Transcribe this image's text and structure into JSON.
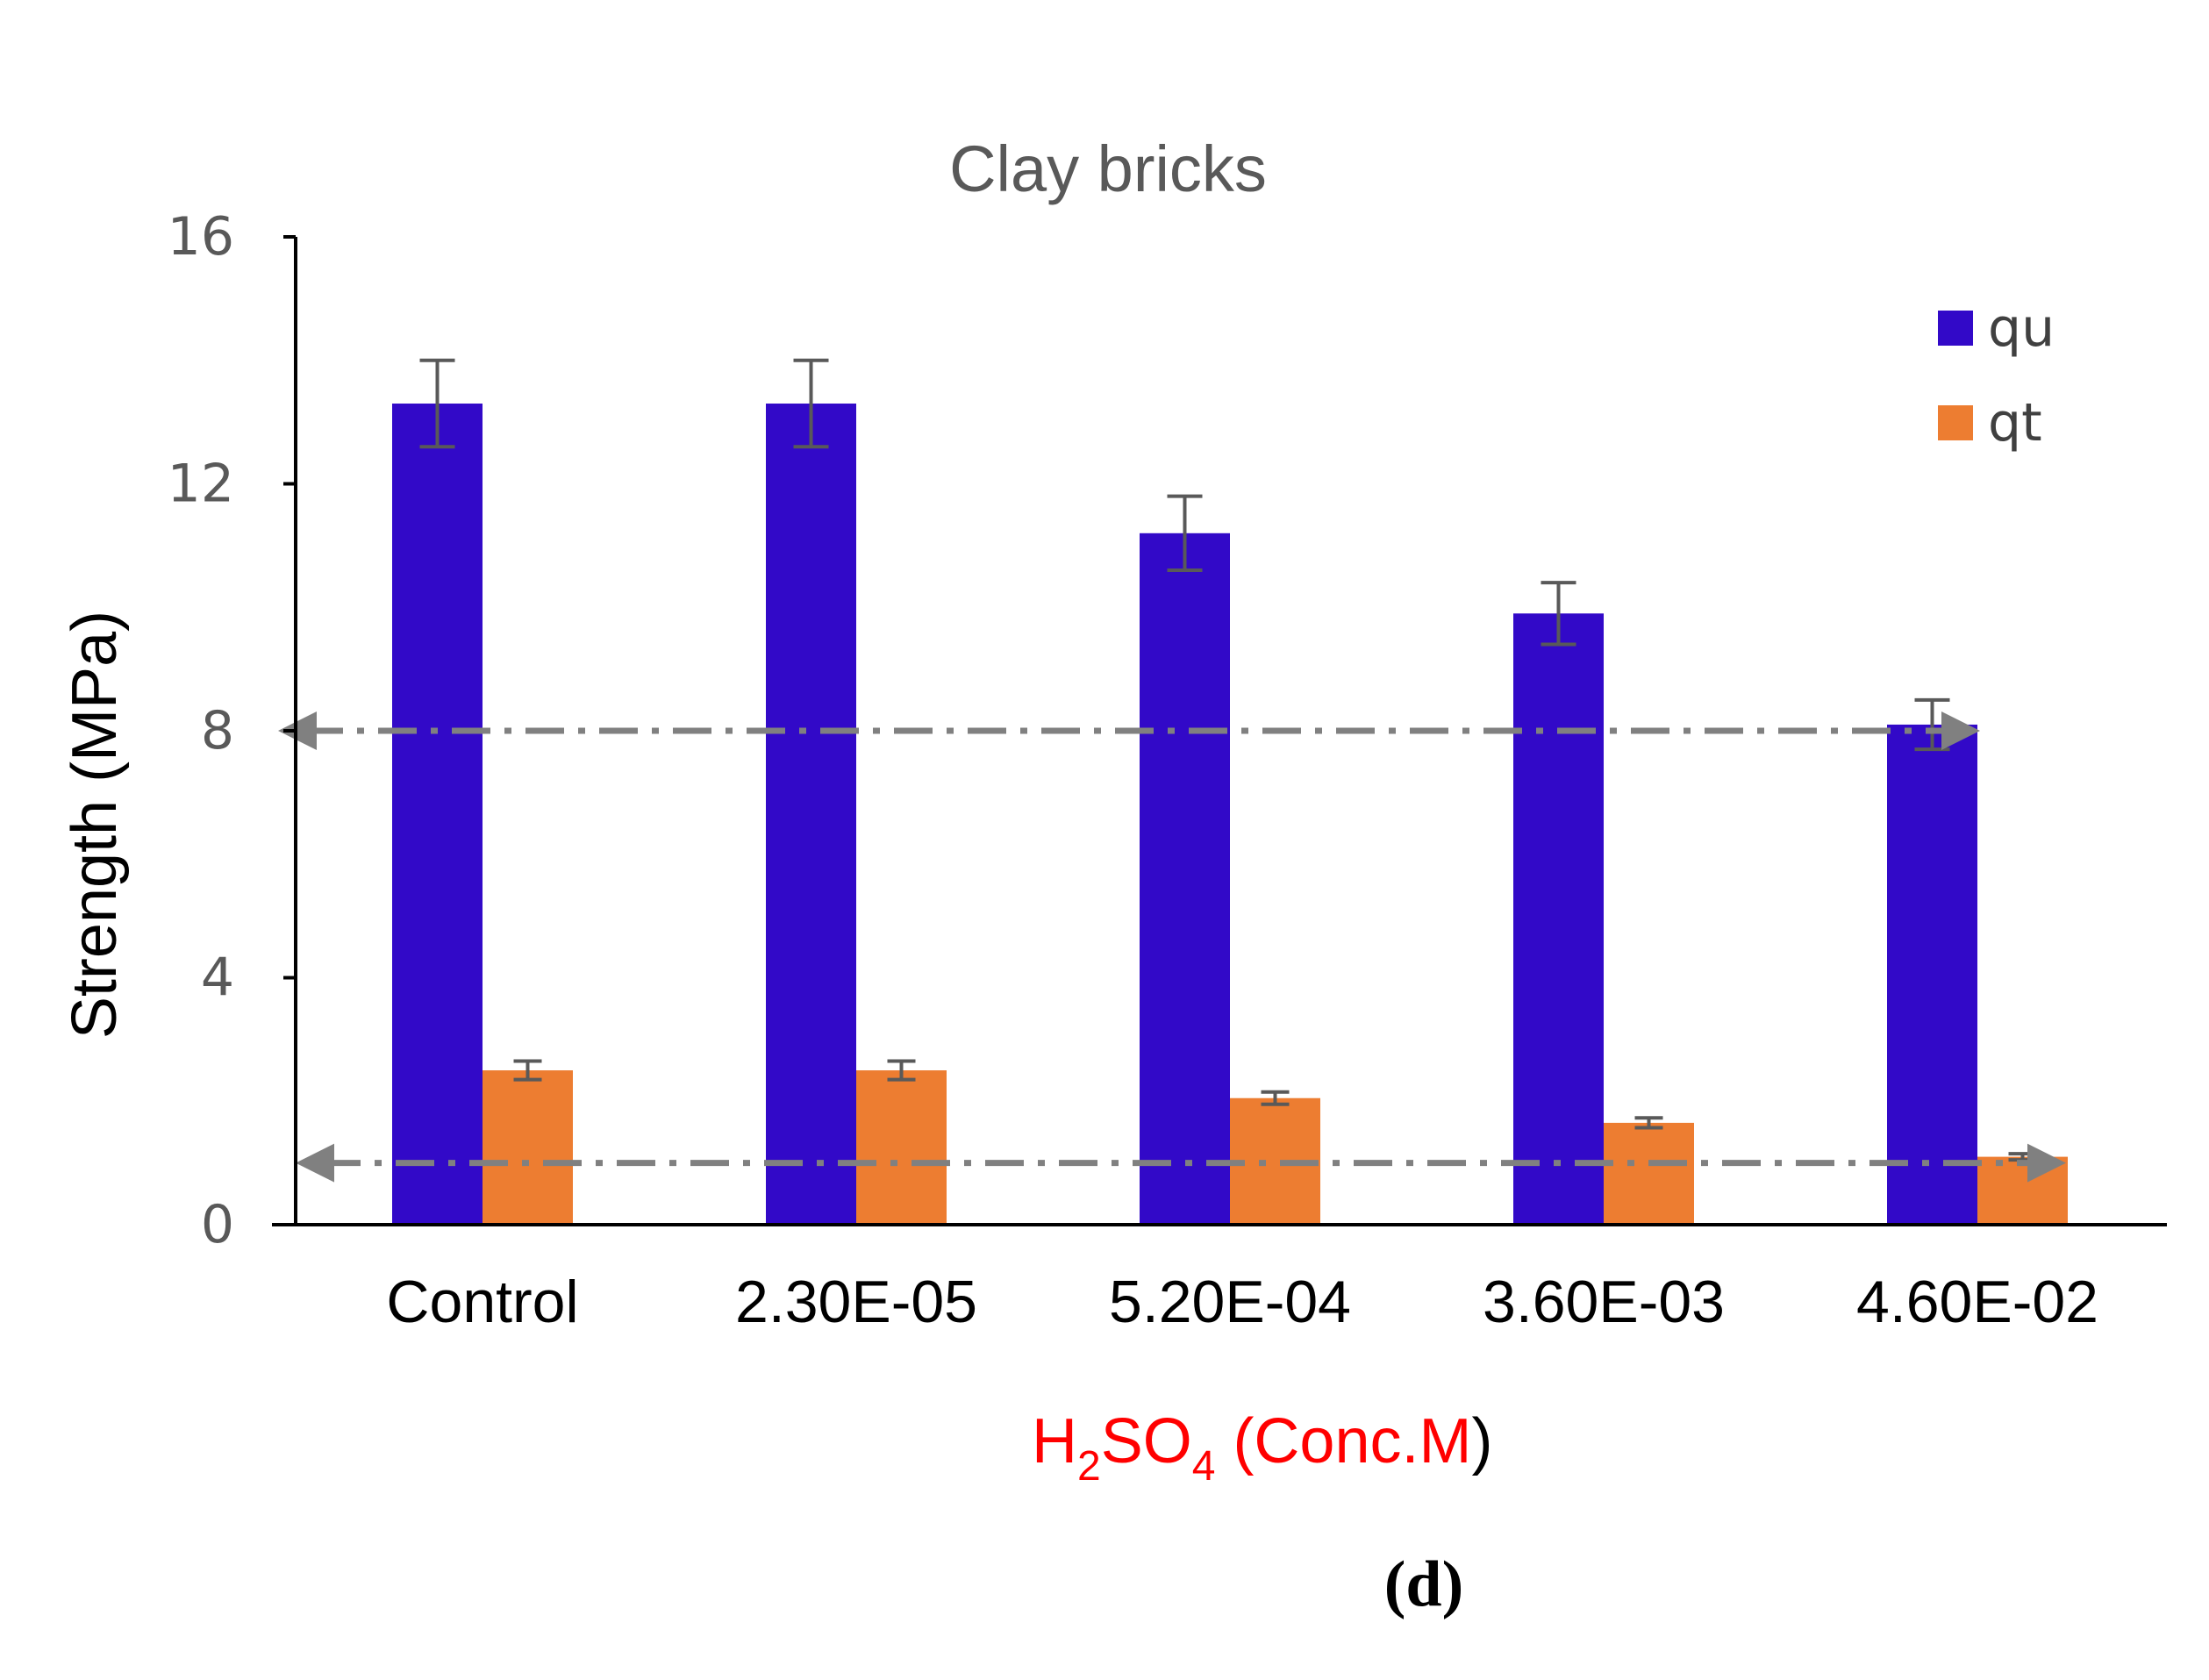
{
  "chart_data": {
    "type": "bar",
    "title": "Clay bricks",
    "ylabel": "Strength (MPa)",
    "xlabel": {
      "prefix": "H",
      "sub1": "2",
      "mid": "SO",
      "sub2": "4",
      "suffix": " (Conc.M",
      "close": ")"
    },
    "categories": [
      "Control",
      "2.30E-05",
      "5.20E-04",
      "3.60E-03",
      "4.60E-02"
    ],
    "ylim": [
      0,
      16
    ],
    "yticks": [
      0,
      4,
      8,
      12,
      16
    ],
    "ytick_labels": [
      "0",
      "4",
      "8",
      "12",
      "16"
    ],
    "series": [
      {
        "name": "qu",
        "color": "#3209C8",
        "values": [
          13.3,
          13.3,
          11.2,
          9.9,
          8.1
        ],
        "errors": [
          0.7,
          0.7,
          0.6,
          0.5,
          0.4
        ]
      },
      {
        "name": "qt",
        "color": "#ED7D31",
        "values": [
          2.5,
          2.5,
          2.05,
          1.65,
          1.1
        ],
        "errors": [
          0.15,
          0.15,
          0.1,
          0.08,
          0.05
        ]
      }
    ],
    "reference_lines": [
      8.0,
      1.0
    ],
    "grid": false,
    "legend_position": "top-right"
  },
  "panel_label": "(d)",
  "colors": {
    "error_bar": "#595959",
    "reference_line": "#808080",
    "xlabel": "#FF0000"
  }
}
